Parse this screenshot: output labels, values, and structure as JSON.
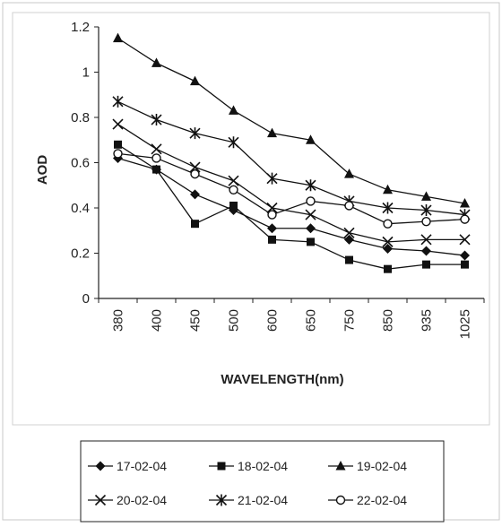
{
  "chart_data": {
    "type": "line",
    "title": "",
    "xlabel": "WAVELENGTH(nm)",
    "ylabel": "AOD",
    "categories": [
      "380",
      "400",
      "450",
      "500",
      "600",
      "650",
      "750",
      "850",
      "935",
      "1025"
    ],
    "ylim": [
      0,
      1.2
    ],
    "yticks": [
      "0",
      "0.2",
      "0.4",
      "0.6",
      "0.8",
      "1",
      "1.2"
    ],
    "grid": false,
    "legend_position": "bottom",
    "series": [
      {
        "name": "17-02-04",
        "marker": "diamond",
        "values": [
          0.62,
          0.57,
          0.46,
          0.39,
          0.31,
          0.31,
          0.26,
          0.22,
          0.21,
          0.19
        ]
      },
      {
        "name": "18-02-04",
        "marker": "square",
        "values": [
          0.68,
          0.57,
          0.33,
          0.41,
          0.26,
          0.25,
          0.17,
          0.13,
          0.15,
          0.15
        ]
      },
      {
        "name": "19-02-04",
        "marker": "triangle",
        "values": [
          1.15,
          1.04,
          0.96,
          0.83,
          0.73,
          0.7,
          0.55,
          0.48,
          0.45,
          0.42
        ]
      },
      {
        "name": "20-02-04",
        "marker": "x",
        "values": [
          0.77,
          0.66,
          0.58,
          0.52,
          0.4,
          0.37,
          0.29,
          0.25,
          0.26,
          0.26
        ]
      },
      {
        "name": "21-02-04",
        "marker": "star",
        "values": [
          0.87,
          0.79,
          0.73,
          0.69,
          0.53,
          0.5,
          0.43,
          0.4,
          0.39,
          0.37
        ]
      },
      {
        "name": "22-02-04",
        "marker": "circle",
        "values": [
          0.64,
          0.62,
          0.55,
          0.48,
          0.37,
          0.43,
          0.41,
          0.33,
          0.34,
          0.35
        ]
      }
    ]
  }
}
